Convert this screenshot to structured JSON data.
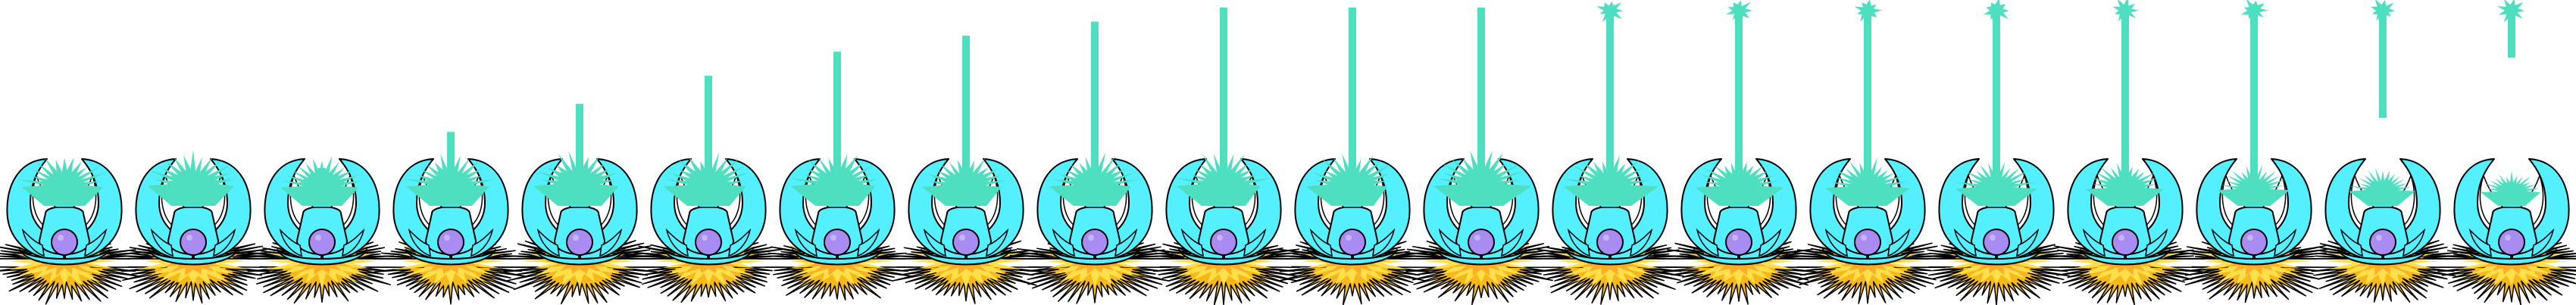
{
  "sprite_sheet": {
    "subject": "fountain-turret",
    "frame_count": 20,
    "frames": [
      {
        "beam_progress": 0.0,
        "beam_tip_burst": false,
        "base_spray_level": 0.9
      },
      {
        "beam_progress": 0.06,
        "beam_tip_burst": false,
        "base_spray_level": 1.0
      },
      {
        "beam_progress": 0.2,
        "beam_tip_burst": false,
        "base_spray_level": 0.85
      },
      {
        "beam_progress": 0.38,
        "beam_tip_burst": false,
        "base_spray_level": 0.95
      },
      {
        "beam_progress": 0.52,
        "beam_tip_burst": false,
        "base_spray_level": 1.0
      },
      {
        "beam_progress": 0.66,
        "beam_tip_burst": false,
        "base_spray_level": 0.95
      },
      {
        "beam_progress": 0.78,
        "beam_tip_burst": false,
        "base_spray_level": 1.0
      },
      {
        "beam_progress": 0.86,
        "beam_tip_burst": false,
        "base_spray_level": 0.9
      },
      {
        "beam_progress": 0.93,
        "beam_tip_burst": false,
        "base_spray_level": 0.95
      },
      {
        "beam_progress": 1.0,
        "beam_tip_burst": false,
        "base_spray_level": 1.0
      },
      {
        "beam_progress": 1.0,
        "beam_tip_burst": false,
        "base_spray_level": 0.95
      },
      {
        "beam_progress": 1.0,
        "beam_tip_burst": false,
        "base_spray_level": 1.0
      },
      {
        "beam_progress": 1.0,
        "beam_tip_burst": true,
        "base_spray_level": 0.95
      },
      {
        "beam_progress": 1.0,
        "beam_tip_burst": true,
        "base_spray_level": 0.85
      },
      {
        "beam_progress": 1.0,
        "beam_tip_burst": true,
        "base_spray_level": 0.8
      },
      {
        "beam_progress": 1.0,
        "beam_tip_burst": true,
        "base_spray_level": 0.75
      },
      {
        "beam_progress": 1.0,
        "beam_tip_burst": true,
        "base_spray_level": 0.7
      },
      {
        "beam_progress": 1.0,
        "beam_tip_burst": true,
        "base_spray_level": 0.6
      },
      {
        "beam_progress": 1.0,
        "beam_tip_burst": true,
        "base_spray_level": 0.5
      },
      {
        "beam_progress": 1.0,
        "beam_tip_burst": true,
        "base_spray_level": 0.4
      }
    ],
    "beam_tail_cut": [
      0,
      0,
      0,
      0,
      0,
      0,
      0,
      0,
      0,
      0,
      0,
      0,
      0,
      0,
      0,
      0,
      0,
      0,
      0.45,
      0.75
    ],
    "colors": {
      "background": "#ffffff",
      "outline": "#000000",
      "bowl": "#55f0ff",
      "bowl_inner": "#ffffff",
      "spray": "#4ddfbf",
      "orb": "#a98cf2",
      "flame_outer": "#f7b81b",
      "flame_inner": "#ffe04a",
      "flame_core": "#ff9410"
    }
  }
}
